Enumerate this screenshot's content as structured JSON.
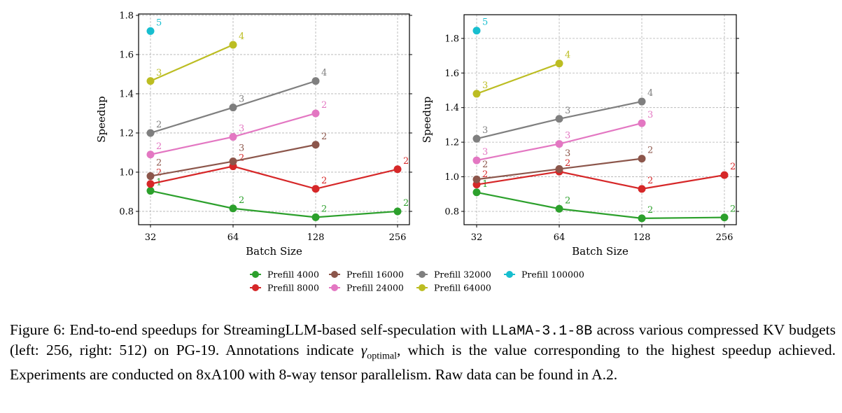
{
  "chart_data": [
    {
      "type": "line",
      "xlabel": "Batch Size",
      "ylabel": "Speedup",
      "x": [
        32,
        64,
        128,
        256
      ],
      "xscale": "log2",
      "ylim": [
        0.732,
        1.807
      ],
      "yticks": [
        0.8,
        1.0,
        1.2,
        1.4,
        1.6,
        1.8
      ],
      "grid": true,
      "series": [
        {
          "name": "Prefill 4000",
          "color": "#2ca02c",
          "values": [
            0.905,
            0.815,
            0.77,
            0.8
          ],
          "labels": [
            "1",
            "2",
            "2",
            "2"
          ]
        },
        {
          "name": "Prefill 8000",
          "color": "#d62728",
          "values": [
            0.94,
            1.03,
            0.915,
            1.015
          ],
          "labels": [
            "2",
            "2",
            "2",
            "2"
          ]
        },
        {
          "name": "Prefill 16000",
          "color": "#8c564b",
          "values": [
            0.98,
            1.055,
            1.14,
            null
          ],
          "labels": [
            "2",
            "3",
            "2",
            null
          ]
        },
        {
          "name": "Prefill 24000",
          "color": "#e377c2",
          "values": [
            1.09,
            1.18,
            1.3,
            null
          ],
          "labels": [
            "2",
            "3",
            "2",
            null
          ]
        },
        {
          "name": "Prefill 32000",
          "color": "#7f7f7f",
          "values": [
            1.2,
            1.33,
            1.465,
            null
          ],
          "labels": [
            "2",
            "3",
            "4",
            null
          ]
        },
        {
          "name": "Prefill 64000",
          "color": "#bcbd22",
          "values": [
            1.465,
            1.65,
            null,
            null
          ],
          "labels": [
            "3",
            "4",
            null,
            null
          ]
        },
        {
          "name": "Prefill 100000",
          "color": "#17becf",
          "values": [
            1.72,
            null,
            null,
            null
          ],
          "labels": [
            "5",
            null,
            null,
            null
          ]
        }
      ]
    },
    {
      "type": "line",
      "xlabel": "Batch Size",
      "ylabel": "Speedup",
      "x": [
        32,
        64,
        128,
        256
      ],
      "xscale": "log2",
      "ylim": [
        0.723,
        1.937
      ],
      "yticks": [
        0.8,
        1.0,
        1.2,
        1.4,
        1.6,
        1.8
      ],
      "grid": true,
      "series": [
        {
          "name": "Prefill 4000",
          "color": "#2ca02c",
          "values": [
            0.91,
            0.815,
            0.76,
            0.765
          ],
          "labels": [
            "1",
            "2",
            "2",
            "2"
          ]
        },
        {
          "name": "Prefill 8000",
          "color": "#d62728",
          "values": [
            0.955,
            1.03,
            0.93,
            1.01
          ],
          "labels": [
            "2",
            "2",
            "2",
            "2"
          ]
        },
        {
          "name": "Prefill 16000",
          "color": "#8c564b",
          "values": [
            0.985,
            1.045,
            1.105,
            null
          ],
          "labels": [
            "2",
            "3",
            "2",
            null
          ]
        },
        {
          "name": "Prefill 24000",
          "color": "#e377c2",
          "values": [
            1.095,
            1.19,
            1.31,
            null
          ],
          "labels": [
            "3",
            "3",
            "3",
            null
          ]
        },
        {
          "name": "Prefill 32000",
          "color": "#7f7f7f",
          "values": [
            1.22,
            1.335,
            1.435,
            null
          ],
          "labels": [
            "3",
            "3",
            "4",
            null
          ]
        },
        {
          "name": "Prefill 64000",
          "color": "#bcbd22",
          "values": [
            1.48,
            1.655,
            null,
            null
          ],
          "labels": [
            "3",
            "4",
            null,
            null
          ]
        },
        {
          "name": "Prefill 100000",
          "color": "#17becf",
          "values": [
            1.845,
            null,
            null,
            null
          ],
          "labels": [
            "5",
            null,
            null,
            null
          ]
        }
      ]
    }
  ],
  "legend": {
    "placement": "bottom-center",
    "items": [
      "Prefill 4000",
      "Prefill 16000",
      "Prefill 32000",
      "Prefill 100000",
      "Prefill 8000",
      "Prefill 24000",
      "Prefill 64000"
    ]
  },
  "caption": {
    "label": "Figure 6:",
    "text1": " End-to-end speedups for StreamingLLM-based self-speculation with ",
    "model": "LLaMA-3.1-8B",
    "text2": " across various compressed KV budgets (left: 256, right: 512) on PG-19. Annotations indicate ",
    "gamma": "γ",
    "gamma_sub": "optimal",
    "text3": ", which is the value corresponding to the highest speedup achieved. Experiments are conducted on 8xA100 with 8-way tensor parallelism. Raw data can be found in A.2."
  }
}
